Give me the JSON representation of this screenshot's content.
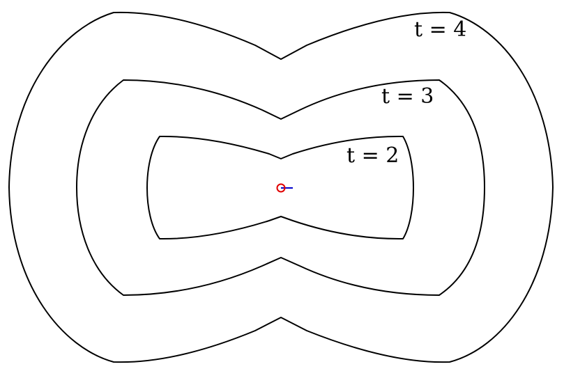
{
  "curves": [
    {
      "t_value": "2",
      "label": "t = 2"
    },
    {
      "t_value": "3",
      "label": "t = 3"
    },
    {
      "t_value": "4",
      "label": "t = 4"
    }
  ],
  "colors": {
    "curve": "#000000",
    "origin_marker": "#e00000",
    "direction_segment": "#0000cc",
    "background": "#ffffff"
  }
}
